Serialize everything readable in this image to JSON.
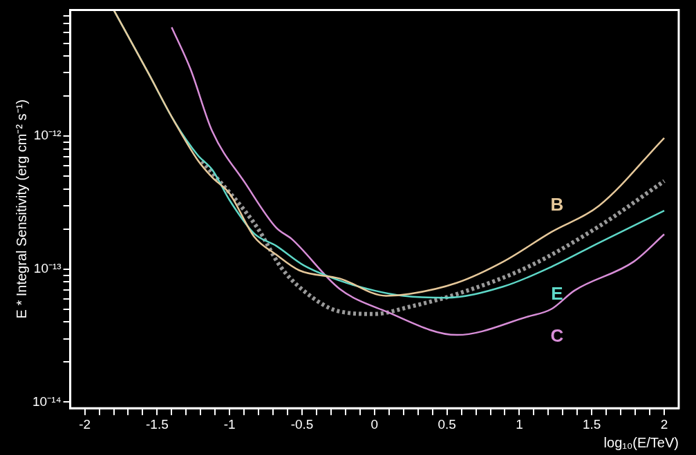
{
  "chart_data": {
    "type": "line",
    "xlabel": "log₁₀(E/TeV)",
    "ylabel": "E * Integral Sensitivity (erg cm⁻² s⁻¹)",
    "log": "y",
    "grid": false,
    "legend": false,
    "marker": "none",
    "xlim": [
      -2.1,
      2.1
    ],
    "ylim": [
      9e-15,
      8.9e-12
    ],
    "xticks": [
      {
        "value": -2,
        "label": "-2"
      },
      {
        "value": -1.9,
        "label": null
      },
      {
        "value": -1.8,
        "label": null
      },
      {
        "value": -1.7,
        "label": null
      },
      {
        "value": -1.6,
        "label": null
      },
      {
        "value": -1.5,
        "label": "-1.5"
      },
      {
        "value": -1.4,
        "label": null
      },
      {
        "value": -1.3,
        "label": null
      },
      {
        "value": -1.2,
        "label": null
      },
      {
        "value": -1.1,
        "label": null
      },
      {
        "value": -1,
        "label": "-1"
      },
      {
        "value": -0.9,
        "label": null
      },
      {
        "value": -0.8,
        "label": null
      },
      {
        "value": -0.7,
        "label": null
      },
      {
        "value": -0.6,
        "label": null
      },
      {
        "value": -0.5,
        "label": "-0.5"
      },
      {
        "value": -0.4,
        "label": null
      },
      {
        "value": -0.3,
        "label": null
      },
      {
        "value": -0.2,
        "label": null
      },
      {
        "value": -0.1,
        "label": null
      },
      {
        "value": 0,
        "label": "0"
      },
      {
        "value": 0.1,
        "label": null
      },
      {
        "value": 0.2,
        "label": null
      },
      {
        "value": 0.3,
        "label": null
      },
      {
        "value": 0.4,
        "label": null
      },
      {
        "value": 0.5,
        "label": "0.5"
      },
      {
        "value": 0.6,
        "label": null
      },
      {
        "value": 0.7,
        "label": null
      },
      {
        "value": 0.8,
        "label": null
      },
      {
        "value": 0.9,
        "label": null
      },
      {
        "value": 1,
        "label": "1"
      },
      {
        "value": 1.1,
        "label": null
      },
      {
        "value": 1.2,
        "label": null
      },
      {
        "value": 1.3,
        "label": null
      },
      {
        "value": 1.4,
        "label": null
      },
      {
        "value": 1.5,
        "label": "1.5"
      },
      {
        "value": 1.6,
        "label": null
      },
      {
        "value": 1.7,
        "label": null
      },
      {
        "value": 1.8,
        "label": null
      },
      {
        "value": 1.9,
        "label": null
      },
      {
        "value": 2,
        "label": "2"
      }
    ],
    "yticks": [
      {
        "value": 1e-14,
        "label": "10⁻¹⁴"
      },
      {
        "value": 2e-14,
        "label": null
      },
      {
        "value": 3e-14,
        "label": null
      },
      {
        "value": 4e-14,
        "label": null
      },
      {
        "value": 5e-14,
        "label": null
      },
      {
        "value": 6e-14,
        "label": null
      },
      {
        "value": 7e-14,
        "label": null
      },
      {
        "value": 8e-14,
        "label": null
      },
      {
        "value": 9e-14,
        "label": null
      },
      {
        "value": 1e-13,
        "label": "10⁻¹³"
      },
      {
        "value": 2e-13,
        "label": null
      },
      {
        "value": 3e-13,
        "label": null
      },
      {
        "value": 4e-13,
        "label": null
      },
      {
        "value": 5e-13,
        "label": null
      },
      {
        "value": 6e-13,
        "label": null
      },
      {
        "value": 7e-13,
        "label": null
      },
      {
        "value": 8e-13,
        "label": null
      },
      {
        "value": 9e-13,
        "label": null
      },
      {
        "value": 1e-12,
        "label": "10⁻¹²"
      },
      {
        "value": 2e-12,
        "label": null
      },
      {
        "value": 3e-12,
        "label": null
      },
      {
        "value": 4e-12,
        "label": null
      },
      {
        "value": 5e-12,
        "label": null
      },
      {
        "value": 6e-12,
        "label": null
      },
      {
        "value": 7e-12,
        "label": null
      },
      {
        "value": 8e-12,
        "label": null
      }
    ],
    "series": [
      {
        "name": "B",
        "color": "#e6c89a",
        "x": [
          -1.8,
          -1.56,
          -1.39,
          -1.22,
          -1.12,
          -1,
          -0.83,
          -0.68,
          -0.52,
          -0.24,
          0.08,
          0.24,
          0.57,
          0.89,
          1.22,
          1.55,
          2.0
        ],
        "values": [
          8.9e-12,
          2.97e-12,
          1.34e-12,
          6.6e-13,
          4.9e-13,
          3.7e-13,
          1.75e-13,
          1.29e-13,
          9.8e-14,
          8.5e-14,
          6.3e-14,
          6.5e-14,
          7.9e-14,
          1.14e-13,
          1.9e-13,
          3e-13,
          9.7e-13
        ]
      },
      {
        "name": "E",
        "color": "#5ed8c8",
        "x": [
          -1.8,
          -1.56,
          -1.39,
          -1.22,
          -1.12,
          -1,
          -0.83,
          -0.68,
          -0.49,
          -0.24,
          0,
          0.2,
          0.49,
          0.89,
          1.22,
          1.55,
          2.0
        ],
        "values": [
          8.9e-12,
          2.97e-12,
          1.34e-12,
          7.2e-13,
          5.6e-13,
          3.3e-13,
          1.85e-13,
          1.5e-13,
          1.07e-13,
          8.2e-14,
          6.9e-14,
          6.3e-14,
          6.1e-14,
          7.4e-14,
          1.04e-13,
          1.58e-13,
          2.75e-13
        ]
      },
      {
        "name": "C",
        "color": "#d88ed8",
        "x": [
          -1.4,
          -1.27,
          -1.12,
          -0.89,
          -0.68,
          -0.57,
          -0.24,
          0.08,
          0.57,
          1.06,
          1.22,
          1.38,
          1.79,
          2.0
        ],
        "values": [
          6.6e-12,
          3.2e-12,
          1.09e-12,
          4.4e-13,
          2.06e-13,
          1.68e-13,
          7.1e-14,
          4.8e-14,
          3.2e-14,
          4.4e-14,
          5e-14,
          6.9e-14,
          1.14e-13,
          1.83e-13
        ]
      },
      {
        "color": "#9a9a9a",
        "line_style": "dotted",
        "x": [
          -1.19,
          -0.81,
          -0.65,
          -0.49,
          -0.24,
          0,
          0.24,
          0.57,
          1.06,
          1.55,
          2.0
        ],
        "values": [
          6.5e-13,
          2.06e-13,
          1.05e-13,
          6.9e-14,
          4.8e-14,
          4.6e-14,
          5.2e-14,
          6.5e-14,
          1.04e-13,
          2.1e-13,
          4.6e-13
        ]
      }
    ]
  }
}
